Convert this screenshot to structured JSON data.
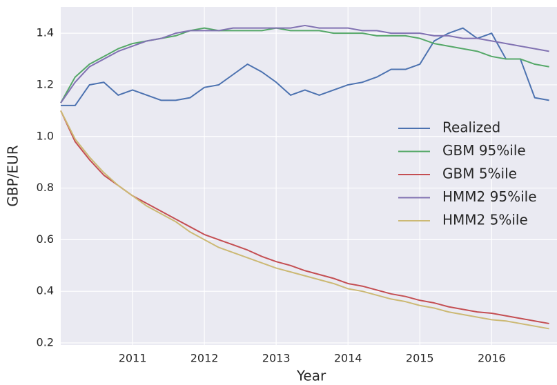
{
  "chart_data": {
    "type": "line",
    "xlabel": "Year",
    "ylabel": "GBP/EUR",
    "x": [
      2010.0,
      2010.2,
      2010.4,
      2010.6,
      2010.8,
      2011.0,
      2011.2,
      2011.4,
      2011.6,
      2011.8,
      2012.0,
      2012.2,
      2012.4,
      2012.6,
      2012.8,
      2013.0,
      2013.2,
      2013.4,
      2013.6,
      2013.8,
      2014.0,
      2014.2,
      2014.4,
      2014.6,
      2014.8,
      2015.0,
      2015.2,
      2015.4,
      2015.6,
      2015.8,
      2016.0,
      2016.2,
      2016.4,
      2016.6,
      2016.8
    ],
    "series": [
      {
        "name": "Realized",
        "color": "#4c72b0",
        "values": [
          1.12,
          1.12,
          1.2,
          1.21,
          1.16,
          1.18,
          1.16,
          1.14,
          1.14,
          1.15,
          1.19,
          1.2,
          1.24,
          1.28,
          1.25,
          1.21,
          1.16,
          1.18,
          1.16,
          1.18,
          1.2,
          1.21,
          1.23,
          1.26,
          1.26,
          1.28,
          1.37,
          1.4,
          1.42,
          1.38,
          1.4,
          1.3,
          1.3,
          1.15,
          1.14
        ]
      },
      {
        "name": "GBM 95%ile",
        "color": "#55a868",
        "values": [
          1.13,
          1.23,
          1.28,
          1.31,
          1.34,
          1.36,
          1.37,
          1.38,
          1.39,
          1.41,
          1.42,
          1.41,
          1.41,
          1.41,
          1.41,
          1.42,
          1.41,
          1.41,
          1.41,
          1.4,
          1.4,
          1.4,
          1.39,
          1.39,
          1.39,
          1.38,
          1.36,
          1.35,
          1.34,
          1.33,
          1.31,
          1.3,
          1.3,
          1.28,
          1.27
        ]
      },
      {
        "name": "GBM 5%ile",
        "color": "#c44e52",
        "values": [
          1.1,
          0.98,
          0.91,
          0.85,
          0.81,
          0.77,
          0.74,
          0.71,
          0.68,
          0.65,
          0.62,
          0.6,
          0.58,
          0.56,
          0.535,
          0.515,
          0.5,
          0.48,
          0.465,
          0.45,
          0.43,
          0.42,
          0.405,
          0.39,
          0.38,
          0.365,
          0.355,
          0.34,
          0.33,
          0.32,
          0.315,
          0.305,
          0.295,
          0.285,
          0.275
        ]
      },
      {
        "name": "HMM2 95%ile",
        "color": "#8172b2",
        "values": [
          1.13,
          1.21,
          1.27,
          1.3,
          1.33,
          1.35,
          1.37,
          1.38,
          1.4,
          1.41,
          1.41,
          1.41,
          1.42,
          1.42,
          1.42,
          1.42,
          1.42,
          1.43,
          1.42,
          1.42,
          1.42,
          1.41,
          1.41,
          1.4,
          1.4,
          1.4,
          1.39,
          1.39,
          1.38,
          1.38,
          1.37,
          1.36,
          1.35,
          1.34,
          1.33
        ]
      },
      {
        "name": "HMM2 5%ile",
        "color": "#ccb974",
        "values": [
          1.1,
          0.99,
          0.92,
          0.86,
          0.81,
          0.77,
          0.73,
          0.7,
          0.67,
          0.63,
          0.6,
          0.57,
          0.55,
          0.53,
          0.51,
          0.49,
          0.475,
          0.46,
          0.445,
          0.43,
          0.41,
          0.4,
          0.385,
          0.37,
          0.36,
          0.345,
          0.335,
          0.32,
          0.31,
          0.3,
          0.29,
          0.285,
          0.275,
          0.265,
          0.255
        ]
      }
    ],
    "xlim": [
      2010.0,
      2016.91
    ],
    "xticks": [
      2011,
      2012,
      2013,
      2014,
      2015,
      2016
    ],
    "ylim": [
      0.192,
      1.502
    ],
    "yticks": [
      0.2,
      0.4,
      0.6,
      0.8,
      {
        "value": 1,
        "label": "1.0"
      },
      1.2,
      1.4
    ],
    "grid": true,
    "legend": "right"
  }
}
